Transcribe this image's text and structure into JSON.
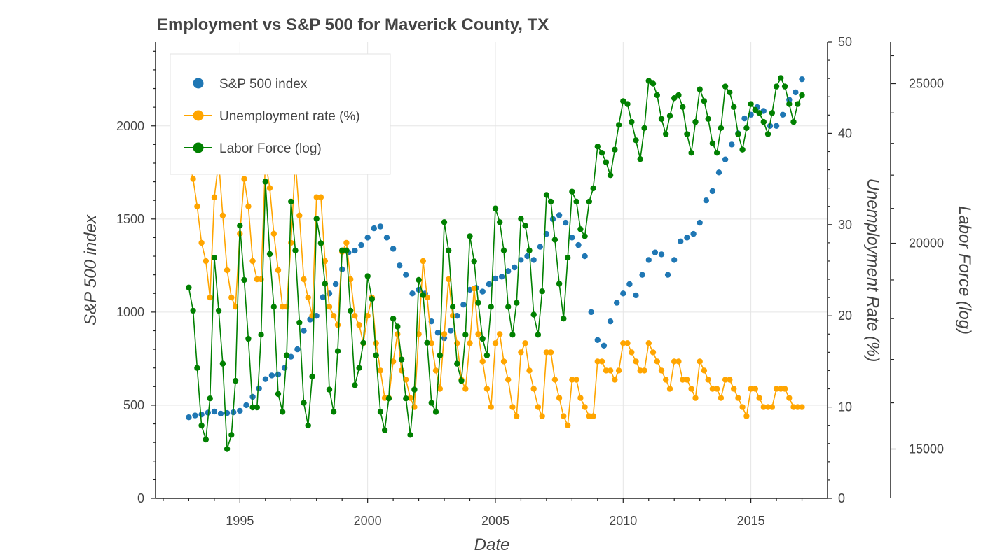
{
  "chart_data": {
    "type": "scatter",
    "title": "Employment vs S&P 500 for Maverick County, TX",
    "xlabel": "Date",
    "ylabel": "S&P 500 index",
    "y2label": "Unemployment Rate (%)",
    "y3label": "Labor Force (log)",
    "xlim": [
      1991.7,
      2018.0
    ],
    "ylim": [
      0,
      2450
    ],
    "y2lim": [
      0,
      50
    ],
    "y3lim": [
      14000,
      26500
    ],
    "y3scale": "log",
    "grid": true,
    "legend_position": "top-left",
    "x_ticks": [
      "1995",
      "2000",
      "2005",
      "2010",
      "2015"
    ],
    "y_ticks": [
      "0",
      "500",
      "1000",
      "1500",
      "2000"
    ],
    "y2_ticks": [
      "0",
      "10",
      "20",
      "30",
      "40",
      "50"
    ],
    "y3_ticks": [
      "15000",
      "20000",
      "25000"
    ],
    "series": [
      {
        "name": "S&P 500 index",
        "axis": "left",
        "style": "points",
        "color": "#1f77b4",
        "x": [
          1993.0,
          1993.25,
          1993.5,
          1993.75,
          1994.0,
          1994.25,
          1994.5,
          1994.75,
          1995.0,
          1995.25,
          1995.5,
          1995.75,
          1996.0,
          1996.25,
          1996.5,
          1996.75,
          1997.0,
          1997.25,
          1997.5,
          1997.75,
          1998.0,
          1998.25,
          1998.5,
          1998.75,
          1999.0,
          1999.25,
          1999.5,
          1999.75,
          2000.0,
          2000.25,
          2000.5,
          2000.75,
          2001.0,
          2001.25,
          2001.5,
          2001.75,
          2002.0,
          2002.25,
          2002.5,
          2002.75,
          2003.0,
          2003.25,
          2003.5,
          2003.75,
          2004.0,
          2004.25,
          2004.5,
          2004.75,
          2005.0,
          2005.25,
          2005.5,
          2005.75,
          2006.0,
          2006.25,
          2006.5,
          2006.75,
          2007.0,
          2007.25,
          2007.5,
          2007.75,
          2008.0,
          2008.25,
          2008.5,
          2008.75,
          2009.0,
          2009.25,
          2009.5,
          2009.75,
          2010.0,
          2010.25,
          2010.5,
          2010.75,
          2011.0,
          2011.25,
          2011.5,
          2011.75,
          2012.0,
          2012.25,
          2012.5,
          2012.75,
          2013.0,
          2013.25,
          2013.5,
          2013.75,
          2014.0,
          2014.25,
          2014.5,
          2014.75,
          2015.0,
          2015.25,
          2015.5,
          2015.75,
          2016.0,
          2016.25,
          2016.5,
          2016.75,
          2017.0
        ],
        "y": [
          435,
          445,
          450,
          460,
          466,
          455,
          458,
          462,
          470,
          500,
          545,
          590,
          640,
          660,
          665,
          700,
          760,
          800,
          900,
          960,
          980,
          1080,
          1100,
          1150,
          1230,
          1320,
          1330,
          1360,
          1400,
          1450,
          1460,
          1400,
          1340,
          1250,
          1200,
          1100,
          1120,
          1100,
          950,
          890,
          860,
          900,
          980,
          1040,
          1120,
          1130,
          1110,
          1150,
          1180,
          1190,
          1220,
          1240,
          1280,
          1300,
          1280,
          1350,
          1420,
          1500,
          1520,
          1480,
          1400,
          1360,
          1300,
          1000,
          850,
          820,
          950,
          1050,
          1100,
          1150,
          1090,
          1200,
          1280,
          1320,
          1310,
          1200,
          1280,
          1380,
          1400,
          1420,
          1480,
          1600,
          1650,
          1750,
          1820,
          1900,
          1960,
          2040,
          2060,
          2100,
          2080,
          2000,
          2000,
          2060,
          2140,
          2180,
          2250
        ]
      },
      {
        "name": "Unemployment rate (%)",
        "axis": "right",
        "style": "line-points",
        "color": "#ffa500",
        "x": [
          1993.0,
          1993.17,
          1993.33,
          1993.5,
          1993.67,
          1993.83,
          1994.0,
          1994.17,
          1994.33,
          1994.5,
          1994.67,
          1994.83,
          1995.0,
          1995.17,
          1995.33,
          1995.5,
          1995.67,
          1995.83,
          1996.0,
          1996.17,
          1996.33,
          1996.5,
          1996.67,
          1996.83,
          1997.0,
          1997.17,
          1997.33,
          1997.5,
          1997.67,
          1997.83,
          1998.0,
          1998.17,
          1998.33,
          1998.5,
          1998.67,
          1998.83,
          1999.0,
          1999.17,
          1999.33,
          1999.5,
          1999.67,
          1999.83,
          2000.0,
          2000.17,
          2000.33,
          2000.5,
          2000.67,
          2000.83,
          2001.0,
          2001.17,
          2001.33,
          2001.5,
          2001.67,
          2001.83,
          2002.0,
          2002.17,
          2002.33,
          2002.5,
          2002.67,
          2002.83,
          2003.0,
          2003.17,
          2003.33,
          2003.5,
          2003.67,
          2003.83,
          2004.0,
          2004.17,
          2004.33,
          2004.5,
          2004.67,
          2004.83,
          2005.0,
          2005.17,
          2005.33,
          2005.5,
          2005.67,
          2005.83,
          2006.0,
          2006.17,
          2006.33,
          2006.5,
          2006.67,
          2006.83,
          2007.0,
          2007.17,
          2007.33,
          2007.5,
          2007.67,
          2007.83,
          2008.0,
          2008.17,
          2008.33,
          2008.5,
          2008.67,
          2008.83,
          2009.0,
          2009.17,
          2009.33,
          2009.5,
          2009.67,
          2009.83,
          2010.0,
          2010.17,
          2010.33,
          2010.5,
          2010.67,
          2010.83,
          2011.0,
          2011.17,
          2011.33,
          2011.5,
          2011.67,
          2011.83,
          2012.0,
          2012.17,
          2012.33,
          2012.5,
          2012.67,
          2012.83,
          2013.0,
          2013.17,
          2013.33,
          2013.5,
          2013.67,
          2013.83,
          2014.0,
          2014.17,
          2014.33,
          2014.5,
          2014.67,
          2014.83,
          2015.0,
          2015.17,
          2015.33,
          2015.5,
          2015.67,
          2015.83,
          2016.0,
          2016.17,
          2016.33,
          2016.5,
          2016.67,
          2016.83,
          2017.0
        ],
        "y": [
          37,
          35,
          32,
          28,
          26,
          22,
          33,
          37,
          31,
          25,
          22,
          21,
          29,
          35,
          32,
          26,
          24,
          24,
          37,
          34,
          29,
          25,
          21,
          21,
          28,
          37,
          31,
          24,
          22,
          20,
          33,
          33,
          26,
          21,
          20,
          19,
          27,
          28,
          24,
          20,
          19,
          17,
          20,
          22,
          17,
          14,
          11,
          11,
          15,
          18,
          14,
          13,
          11,
          10,
          18,
          26,
          22,
          17,
          14,
          12,
          18,
          24,
          20,
          17,
          13,
          12,
          17,
          23,
          18,
          15,
          12,
          10,
          17,
          18,
          15,
          13,
          10,
          9,
          16,
          17,
          14,
          12,
          10,
          9,
          16,
          16,
          13,
          11,
          9,
          8,
          13,
          13,
          11,
          10,
          9,
          9,
          15,
          15,
          14,
          14,
          13,
          14,
          17,
          17,
          16,
          15,
          14,
          14,
          17,
          16,
          15,
          14,
          13,
          12,
          15,
          15,
          13,
          13,
          12,
          11,
          15,
          14,
          13,
          12,
          12,
          11,
          13,
          13,
          12,
          11,
          10,
          9,
          12,
          12,
          11,
          10,
          10,
          10,
          12,
          12,
          12,
          11,
          10,
          10,
          10
        ]
      },
      {
        "name": "Labor Force (log)",
        "axis": "right-outer",
        "style": "line-points",
        "color": "#008000",
        "x": [
          1993.0,
          1993.17,
          1993.33,
          1993.5,
          1993.67,
          1993.83,
          1994.0,
          1994.17,
          1994.33,
          1994.5,
          1994.67,
          1994.83,
          1995.0,
          1995.17,
          1995.33,
          1995.5,
          1995.67,
          1995.83,
          1996.0,
          1996.17,
          1996.33,
          1996.5,
          1996.67,
          1996.83,
          1997.0,
          1997.17,
          1997.33,
          1997.5,
          1997.67,
          1997.83,
          1998.0,
          1998.17,
          1998.33,
          1998.5,
          1998.67,
          1998.83,
          1999.0,
          1999.17,
          1999.33,
          1999.5,
          1999.67,
          1999.83,
          2000.0,
          2000.17,
          2000.33,
          2000.5,
          2000.67,
          2000.83,
          2001.0,
          2001.17,
          2001.33,
          2001.5,
          2001.67,
          2001.83,
          2002.0,
          2002.17,
          2002.33,
          2002.5,
          2002.67,
          2002.83,
          2003.0,
          2003.17,
          2003.33,
          2003.5,
          2003.67,
          2003.83,
          2004.0,
          2004.17,
          2004.33,
          2004.5,
          2004.67,
          2004.83,
          2005.0,
          2005.17,
          2005.33,
          2005.5,
          2005.67,
          2005.83,
          2006.0,
          2006.17,
          2006.33,
          2006.5,
          2006.67,
          2006.83,
          2007.0,
          2007.17,
          2007.33,
          2007.5,
          2007.67,
          2007.83,
          2008.0,
          2008.17,
          2008.33,
          2008.5,
          2008.67,
          2008.83,
          2009.0,
          2009.17,
          2009.33,
          2009.5,
          2009.67,
          2009.83,
          2010.0,
          2010.17,
          2010.33,
          2010.5,
          2010.67,
          2010.83,
          2011.0,
          2011.17,
          2011.33,
          2011.5,
          2011.67,
          2011.83,
          2012.0,
          2012.17,
          2012.33,
          2012.5,
          2012.67,
          2012.83,
          2013.0,
          2013.17,
          2013.33,
          2013.5,
          2013.67,
          2013.83,
          2014.0,
          2014.17,
          2014.33,
          2014.5,
          2014.67,
          2014.83,
          2015.0,
          2015.17,
          2015.33,
          2015.5,
          2015.67,
          2015.83,
          2016.0,
          2016.17,
          2016.33,
          2016.5,
          2016.67,
          2016.83,
          2017.0
        ],
        "y": [
          18800,
          18200,
          16800,
          15500,
          15200,
          16100,
          19600,
          18200,
          16900,
          15000,
          15300,
          16500,
          20500,
          19000,
          17500,
          15900,
          15900,
          17600,
          21800,
          19700,
          18300,
          16200,
          15800,
          17100,
          21200,
          19800,
          17900,
          16000,
          15500,
          16600,
          20700,
          20000,
          18900,
          16300,
          15800,
          17200,
          19800,
          19800,
          18200,
          16400,
          16800,
          17400,
          19100,
          18500,
          17100,
          15800,
          15400,
          16100,
          18000,
          17800,
          17000,
          16100,
          15300,
          16300,
          19000,
          18600,
          17400,
          16000,
          15800,
          17100,
          20600,
          19800,
          18300,
          16900,
          16500,
          17600,
          20200,
          19500,
          18400,
          17500,
          17100,
          18300,
          21000,
          20600,
          19800,
          18300,
          17600,
          18400,
          20700,
          20500,
          19800,
          18100,
          17600,
          18700,
          21400,
          21200,
          20100,
          18900,
          18000,
          19600,
          21500,
          21200,
          20400,
          20200,
          21200,
          21600,
          22900,
          22700,
          22400,
          22000,
          22800,
          23600,
          24400,
          24300,
          23700,
          23100,
          22500,
          23500,
          25100,
          25000,
          24600,
          23800,
          23300,
          23900,
          24500,
          24600,
          24200,
          23300,
          22700,
          23700,
          24800,
          24400,
          23800,
          23000,
          22700,
          23500,
          24900,
          24700,
          24200,
          23300,
          22800,
          23500,
          24300,
          24100,
          24000,
          23700,
          23300,
          24000,
          24900,
          25200,
          24900,
          24300,
          23700,
          24300,
          24600
        ]
      }
    ]
  }
}
